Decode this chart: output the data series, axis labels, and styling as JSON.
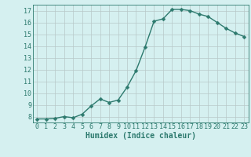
{
  "x": [
    0,
    1,
    2,
    3,
    4,
    5,
    6,
    7,
    8,
    9,
    10,
    11,
    12,
    13,
    14,
    15,
    16,
    17,
    18,
    19,
    20,
    21,
    22,
    23
  ],
  "y": [
    7.8,
    7.8,
    7.85,
    8.0,
    7.9,
    8.2,
    8.9,
    9.5,
    9.2,
    9.4,
    10.5,
    11.9,
    13.9,
    16.1,
    16.3,
    17.1,
    17.1,
    17.0,
    16.7,
    16.5,
    16.0,
    15.5,
    15.1,
    14.8
  ],
  "line_color": "#2d7a6e",
  "marker_color": "#2d7a6e",
  "bg_color": "#d5f0f0",
  "grid_color": "#b8c8c8",
  "xlabel": "Humidex (Indice chaleur)",
  "xlim": [
    -0.5,
    23.5
  ],
  "ylim": [
    7.5,
    17.5
  ],
  "yticks": [
    8,
    9,
    10,
    11,
    12,
    13,
    14,
    15,
    16,
    17
  ],
  "xticks": [
    0,
    1,
    2,
    3,
    4,
    5,
    6,
    7,
    8,
    9,
    10,
    11,
    12,
    13,
    14,
    15,
    16,
    17,
    18,
    19,
    20,
    21,
    22,
    23
  ],
  "xtick_labels": [
    "0",
    "1",
    "2",
    "3",
    "4",
    "5",
    "6",
    "7",
    "8",
    "9",
    "10",
    "11",
    "12",
    "13",
    "14",
    "15",
    "16",
    "17",
    "18",
    "19",
    "20",
    "21",
    "22",
    "23"
  ],
  "tick_fontsize": 6,
  "label_fontsize": 7,
  "linewidth": 1.0,
  "markersize": 2.5
}
